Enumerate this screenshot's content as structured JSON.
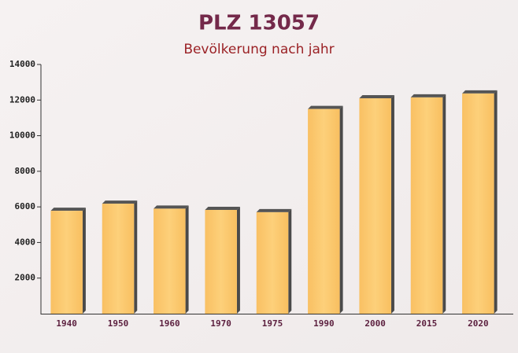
{
  "chart_data": {
    "type": "bar",
    "title": "PLZ 13057",
    "subtitle": "Bevölkerung nach jahr",
    "categories": [
      "1940",
      "1950",
      "1960",
      "1970",
      "1975",
      "1990",
      "2000",
      "2015",
      "2020"
    ],
    "values": [
      5780,
      6180,
      5900,
      5830,
      5700,
      11500,
      12100,
      12150,
      12370
    ],
    "color": "#fbc76a",
    "ylim": [
      0,
      14000
    ],
    "yticks": [
      2000,
      4000,
      6000,
      8000,
      10000,
      12000,
      14000
    ]
  }
}
